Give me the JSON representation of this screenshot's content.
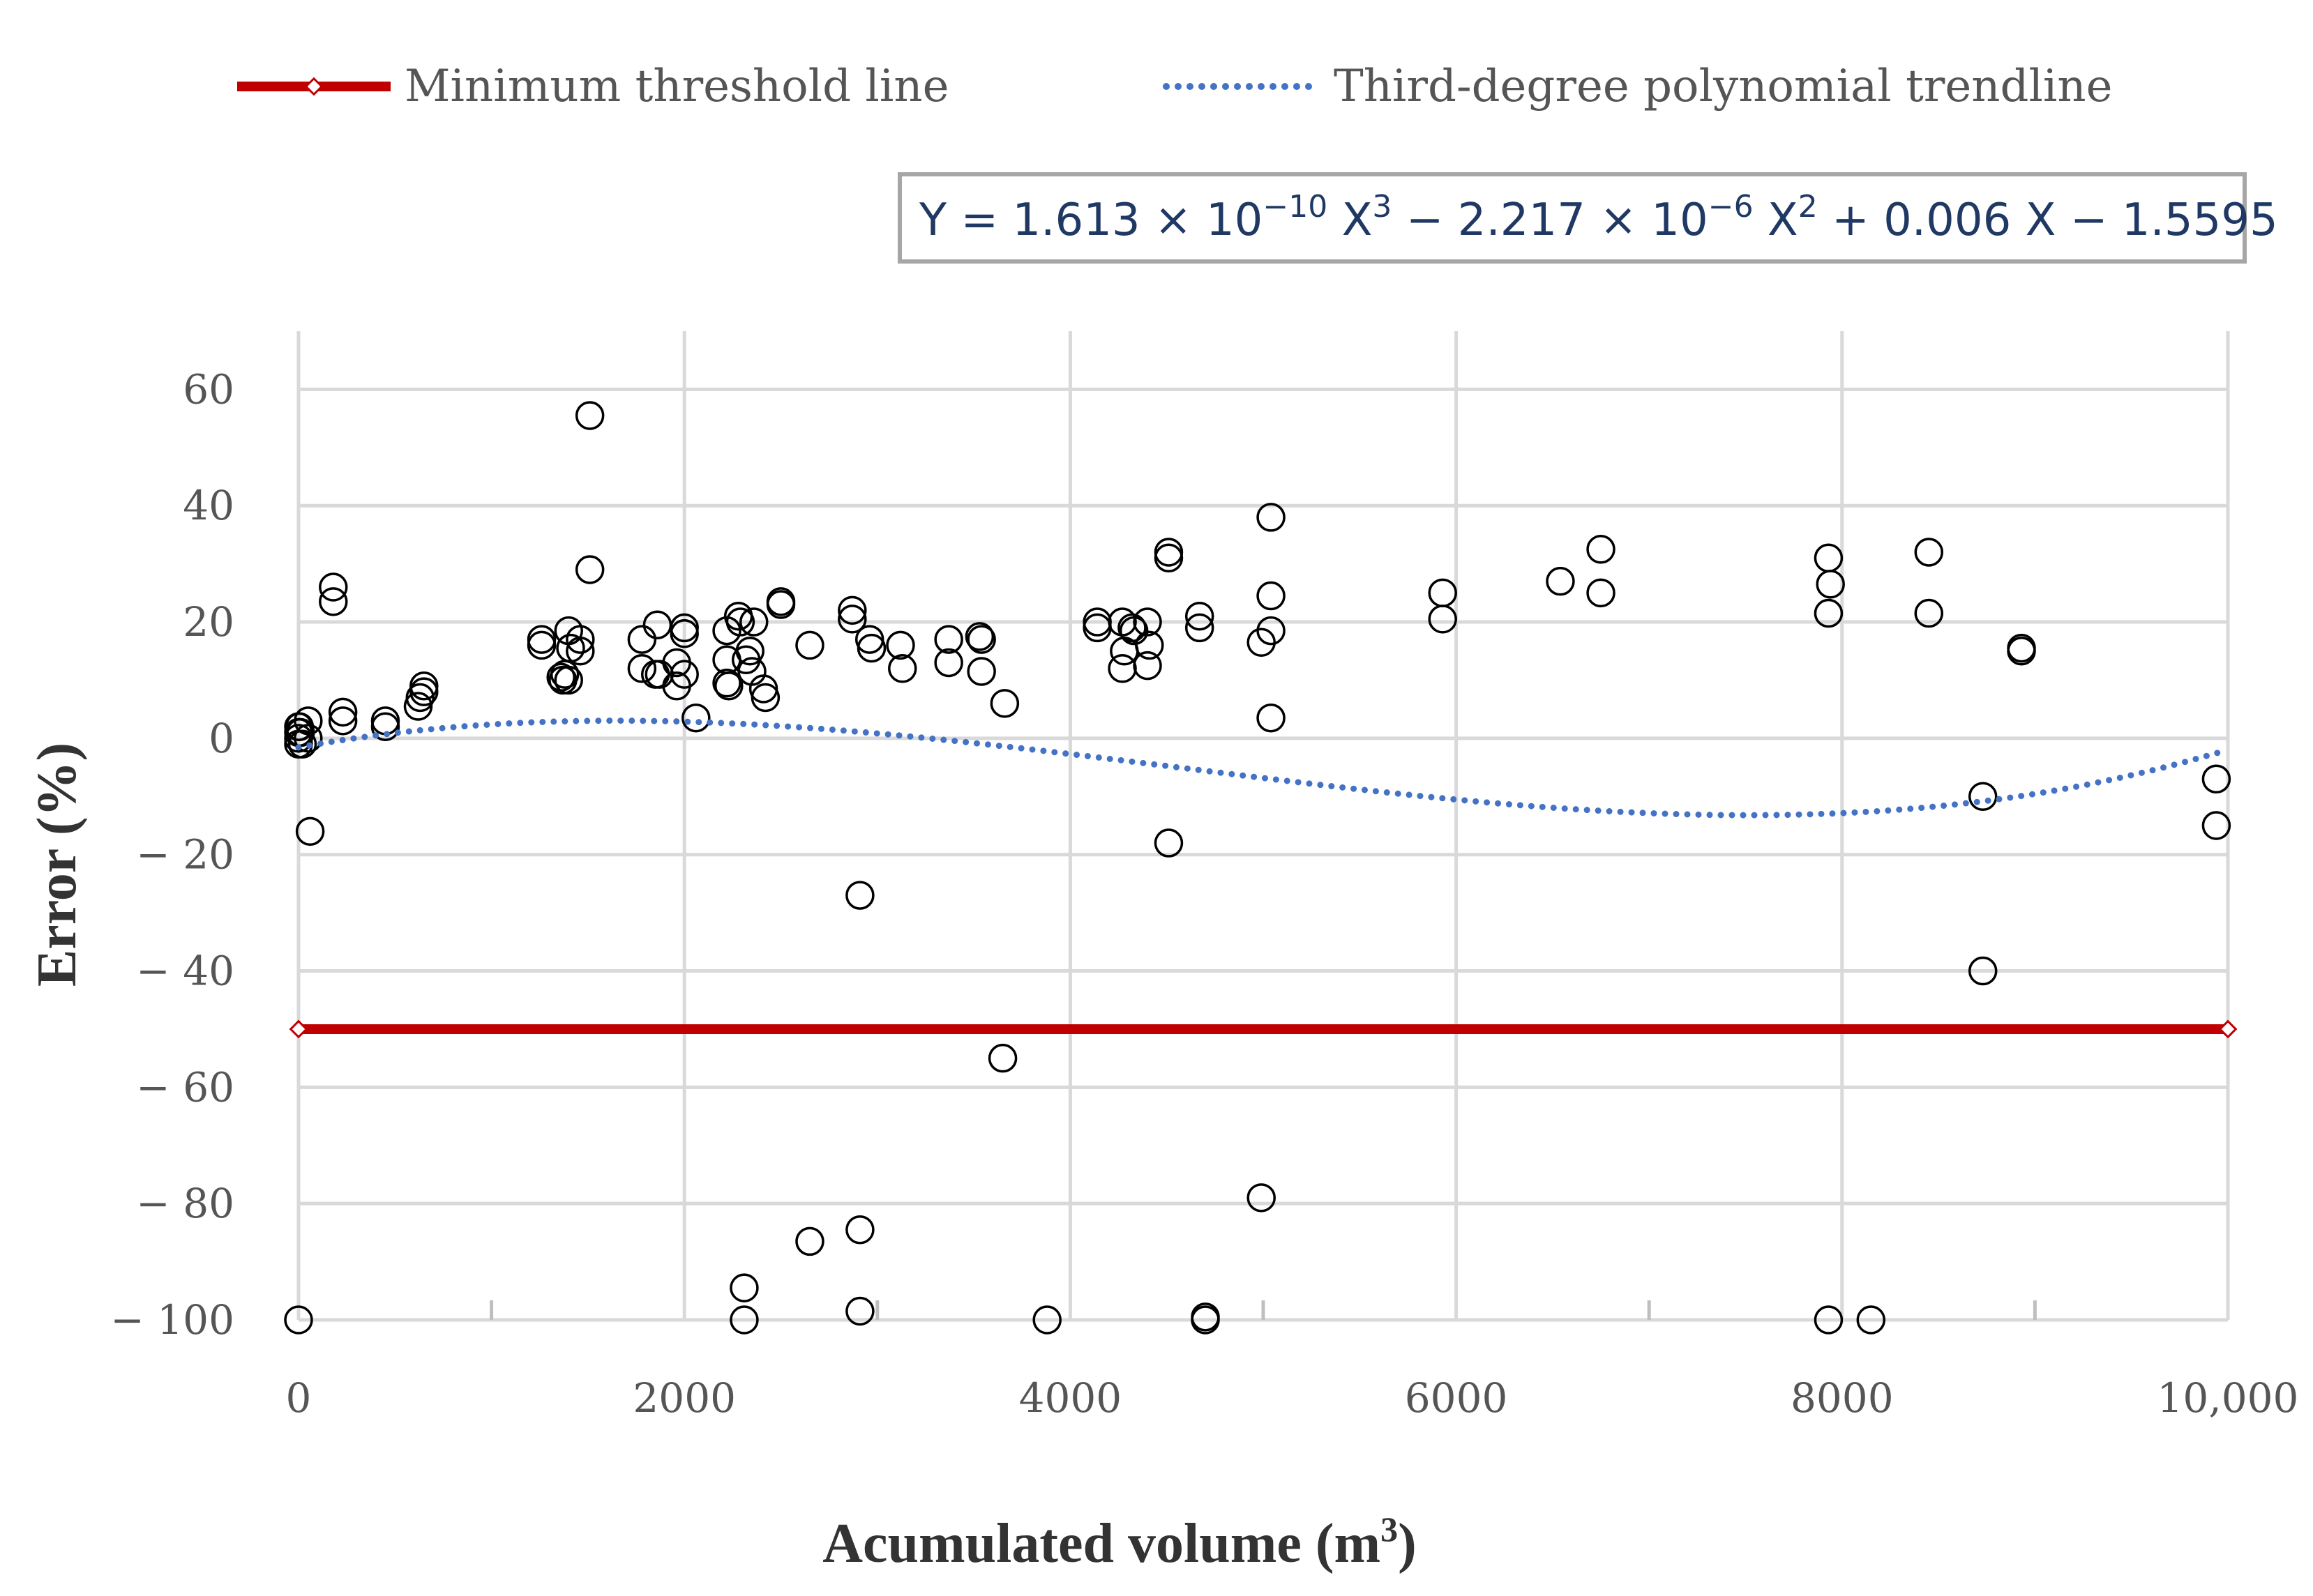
{
  "chart_data": {
    "type": "scatter",
    "title": "",
    "xlabel": "Acumulated volume (m",
    "xlabel_sup": "3",
    "xlabel_tail": ")",
    "ylabel": "Error (%)",
    "xlim": [
      0,
      10000
    ],
    "ylim": [
      -100,
      70
    ],
    "x_ticks": [
      0,
      2000,
      4000,
      6000,
      8000,
      10000
    ],
    "x_tick_labels": [
      "0",
      "2000",
      "4000",
      "6000",
      "8000",
      "10,000"
    ],
    "x_minor_ticks": [
      1000,
      3000,
      5000,
      7000,
      9000
    ],
    "y_ticks": [
      60,
      40,
      20,
      0,
      -20,
      -40,
      -60,
      -80,
      -100
    ],
    "y_tick_labels": [
      "60",
      "40",
      "20",
      "0",
      "− 20",
      "− 40",
      "− 60",
      "− 80",
      "− 100"
    ],
    "grid": true,
    "legend": {
      "position": "top",
      "entries": [
        {
          "name": "Minimum threshold line",
          "style": "solid-red-diamond"
        },
        {
          "name": "Third-degree polynomial trendline",
          "style": "dotted-blue"
        }
      ]
    },
    "equation": {
      "parts": [
        "Y = 1.613 × 10",
        "−10",
        " X",
        "3",
        " − 2.217 × 10",
        "−6",
        " X",
        "2",
        " + 0.006 X − 1.5595"
      ],
      "supers": [
        false,
        true,
        false,
        true,
        false,
        true,
        false,
        true,
        false
      ]
    },
    "threshold": {
      "name": "Minimum threshold line",
      "y": -50,
      "x_range": [
        0,
        10000
      ],
      "color": "#c00000"
    },
    "trendline": {
      "name": "Third-degree polynomial trendline",
      "coefficients": [
        1.613e-10,
        -2.217e-06,
        0.006,
        -1.5595
      ],
      "x_range": [
        0,
        10000
      ],
      "color": "#4472c4"
    },
    "series": [
      {
        "name": "Error",
        "points": [
          [
            0,
            2
          ],
          [
            0,
            1
          ],
          [
            0,
            0
          ],
          [
            0,
            -1
          ],
          [
            5,
            2
          ],
          [
            10,
            1
          ],
          [
            20,
            -1
          ],
          [
            50,
            3
          ],
          [
            50,
            0
          ],
          [
            60,
            -16
          ],
          [
            0,
            -100
          ],
          [
            180,
            26
          ],
          [
            180,
            23.5
          ],
          [
            230,
            4.5
          ],
          [
            230,
            3
          ],
          [
            450,
            3
          ],
          [
            450,
            2
          ],
          [
            620,
            5.5
          ],
          [
            630,
            7
          ],
          [
            650,
            9
          ],
          [
            650,
            8
          ],
          [
            1260,
            17
          ],
          [
            1260,
            16
          ],
          [
            1360,
            10.5
          ],
          [
            1370,
            10
          ],
          [
            1380,
            11
          ],
          [
            1400,
            18.5
          ],
          [
            1400,
            10
          ],
          [
            1410,
            15.5
          ],
          [
            1460,
            17
          ],
          [
            1460,
            15
          ],
          [
            1510,
            55.5
          ],
          [
            1510,
            29
          ],
          [
            1780,
            17
          ],
          [
            1780,
            12
          ],
          [
            1850,
            11
          ],
          [
            1860,
            19.5
          ],
          [
            1870,
            11
          ],
          [
            1960,
            9
          ],
          [
            1960,
            13
          ],
          [
            2000,
            19
          ],
          [
            2000,
            11
          ],
          [
            2000,
            18
          ],
          [
            2060,
            3.5
          ],
          [
            2220,
            18.5
          ],
          [
            2220,
            13.5
          ],
          [
            2220,
            9.5
          ],
          [
            2230,
            9
          ],
          [
            2280,
            21
          ],
          [
            2290,
            20
          ],
          [
            2320,
            13.5
          ],
          [
            2340,
            15
          ],
          [
            2350,
            11.5
          ],
          [
            2360,
            20
          ],
          [
            2410,
            8.5
          ],
          [
            2420,
            7
          ],
          [
            2500,
            23.5
          ],
          [
            2500,
            23
          ],
          [
            2650,
            16
          ],
          [
            2870,
            22
          ],
          [
            2870,
            20.5
          ],
          [
            2960,
            17
          ],
          [
            2970,
            15.5
          ],
          [
            3120,
            16
          ],
          [
            3130,
            12
          ],
          [
            2310,
            -94.5
          ],
          [
            2310,
            -100
          ],
          [
            2650,
            -86.5
          ],
          [
            2910,
            -84.5
          ],
          [
            2910,
            -98.5
          ],
          [
            2910,
            -27
          ],
          [
            3370,
            17
          ],
          [
            3370,
            13
          ],
          [
            3530,
            17.5
          ],
          [
            3540,
            17
          ],
          [
            3540,
            11.5
          ],
          [
            3660,
            6
          ],
          [
            3650,
            -55
          ],
          [
            3880,
            -100
          ],
          [
            4140,
            20
          ],
          [
            4140,
            19
          ],
          [
            4270,
            20
          ],
          [
            4270,
            12
          ],
          [
            4280,
            15
          ],
          [
            4320,
            19
          ],
          [
            4330,
            18.5
          ],
          [
            4400,
            20
          ],
          [
            4400,
            12.5
          ],
          [
            4410,
            16
          ],
          [
            4510,
            32
          ],
          [
            4510,
            31
          ],
          [
            4510,
            -18
          ],
          [
            4670,
            21
          ],
          [
            4670,
            19
          ],
          [
            4700,
            -99.5
          ],
          [
            4700,
            -100
          ],
          [
            4990,
            16.5
          ],
          [
            5040,
            38
          ],
          [
            5040,
            24.5
          ],
          [
            5040,
            18.5
          ],
          [
            5040,
            3.5
          ],
          [
            4990,
            -79
          ],
          [
            5930,
            25
          ],
          [
            5930,
            20.5
          ],
          [
            6540,
            27
          ],
          [
            6750,
            32.5
          ],
          [
            6750,
            25
          ],
          [
            7930,
            31
          ],
          [
            7940,
            26.5
          ],
          [
            7930,
            21.5
          ],
          [
            7930,
            -100
          ],
          [
            8150,
            -100
          ],
          [
            8450,
            32
          ],
          [
            8450,
            21.5
          ],
          [
            8730,
            -10
          ],
          [
            8730,
            -40
          ],
          [
            8930,
            15.5
          ],
          [
            8930,
            15
          ],
          [
            9940,
            -7
          ],
          [
            9940,
            -15
          ]
        ]
      }
    ]
  }
}
